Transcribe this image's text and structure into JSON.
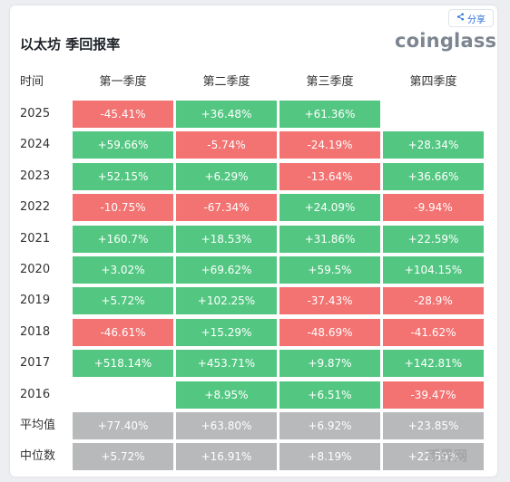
{
  "header": {
    "title": "以太坊 季回报率",
    "brand": "coinglass",
    "share_label": "分享"
  },
  "table": {
    "columns": [
      "时间",
      "第一季度",
      "第二季度",
      "第三季度",
      "第四季度"
    ],
    "rows": [
      {
        "label": "2025",
        "cells": [
          {
            "value": "-45.41%",
            "tone": "neg"
          },
          {
            "value": "+36.48%",
            "tone": "pos"
          },
          {
            "value": "+61.36%",
            "tone": "pos"
          },
          {
            "value": "",
            "tone": "empty"
          }
        ]
      },
      {
        "label": "2024",
        "cells": [
          {
            "value": "+59.66%",
            "tone": "pos"
          },
          {
            "value": "-5.74%",
            "tone": "neg"
          },
          {
            "value": "-24.19%",
            "tone": "neg"
          },
          {
            "value": "+28.34%",
            "tone": "pos"
          }
        ]
      },
      {
        "label": "2023",
        "cells": [
          {
            "value": "+52.15%",
            "tone": "pos"
          },
          {
            "value": "+6.29%",
            "tone": "pos"
          },
          {
            "value": "-13.64%",
            "tone": "neg"
          },
          {
            "value": "+36.66%",
            "tone": "pos"
          }
        ]
      },
      {
        "label": "2022",
        "cells": [
          {
            "value": "-10.75%",
            "tone": "neg"
          },
          {
            "value": "-67.34%",
            "tone": "neg"
          },
          {
            "value": "+24.09%",
            "tone": "pos"
          },
          {
            "value": "-9.94%",
            "tone": "neg"
          }
        ]
      },
      {
        "label": "2021",
        "cells": [
          {
            "value": "+160.7%",
            "tone": "pos"
          },
          {
            "value": "+18.53%",
            "tone": "pos"
          },
          {
            "value": "+31.86%",
            "tone": "pos"
          },
          {
            "value": "+22.59%",
            "tone": "pos"
          }
        ]
      },
      {
        "label": "2020",
        "cells": [
          {
            "value": "+3.02%",
            "tone": "pos"
          },
          {
            "value": "+69.62%",
            "tone": "pos"
          },
          {
            "value": "+59.5%",
            "tone": "pos"
          },
          {
            "value": "+104.15%",
            "tone": "pos"
          }
        ]
      },
      {
        "label": "2019",
        "cells": [
          {
            "value": "+5.72%",
            "tone": "pos"
          },
          {
            "value": "+102.25%",
            "tone": "pos"
          },
          {
            "value": "-37.43%",
            "tone": "neg"
          },
          {
            "value": "-28.9%",
            "tone": "neg"
          }
        ]
      },
      {
        "label": "2018",
        "cells": [
          {
            "value": "-46.61%",
            "tone": "neg"
          },
          {
            "value": "+15.29%",
            "tone": "pos"
          },
          {
            "value": "-48.69%",
            "tone": "neg"
          },
          {
            "value": "-41.62%",
            "tone": "neg"
          }
        ]
      },
      {
        "label": "2017",
        "cells": [
          {
            "value": "+518.14%",
            "tone": "pos"
          },
          {
            "value": "+453.71%",
            "tone": "pos"
          },
          {
            "value": "+9.87%",
            "tone": "pos"
          },
          {
            "value": "+142.81%",
            "tone": "pos"
          }
        ]
      },
      {
        "label": "2016",
        "cells": [
          {
            "value": "",
            "tone": "empty"
          },
          {
            "value": "+8.95%",
            "tone": "pos"
          },
          {
            "value": "+6.51%",
            "tone": "pos"
          },
          {
            "value": "-39.47%",
            "tone": "neg"
          }
        ]
      },
      {
        "label": "平均值",
        "cells": [
          {
            "value": "+77.40%",
            "tone": "avg"
          },
          {
            "value": "+63.80%",
            "tone": "avg"
          },
          {
            "value": "+6.92%",
            "tone": "avg"
          },
          {
            "value": "+23.85%",
            "tone": "avg"
          }
        ]
      },
      {
        "label": "中位数",
        "cells": [
          {
            "value": "+5.72%",
            "tone": "avg"
          },
          {
            "value": "+16.91%",
            "tone": "avg"
          },
          {
            "value": "+8.19%",
            "tone": "avg"
          },
          {
            "value": "+22.59%",
            "tone": "avg"
          }
        ]
      }
    ]
  },
  "colors": {
    "positive": "#53c782",
    "negative": "#f27372",
    "summary": "#b8b9bb"
  },
  "watermark": "币界网"
}
